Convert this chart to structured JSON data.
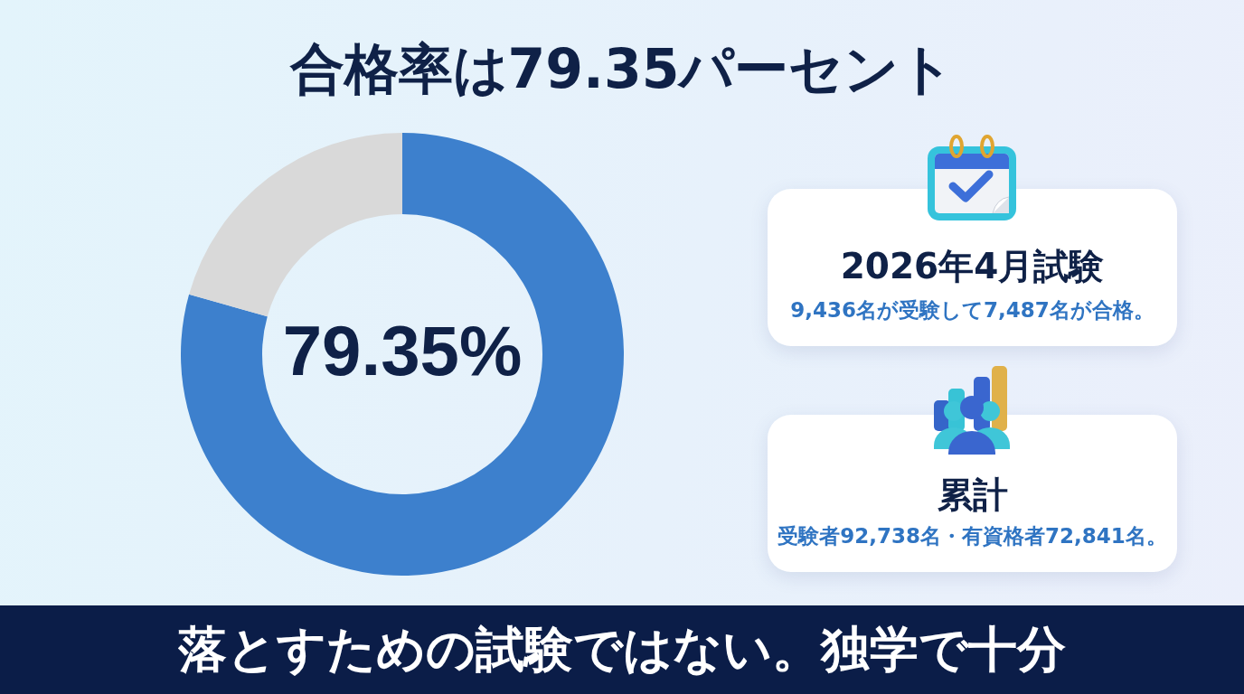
{
  "chart_data": {
    "type": "donut",
    "title": "合格率は79.35パーセント",
    "categories": [
      null,
      null
    ],
    "values": [
      79.35,
      20.65
    ],
    "colors": [
      "#3d80cd",
      "#d9d9d9"
    ],
    "value_labels": [
      "79.35%",
      null
    ],
    "annotations": [
      "2026年4月試験",
      "9,436名が受験して7,487名が合格。",
      "累計",
      "受験者92,738名・有資格者72,841名。",
      "落とすための試験ではない。独学で十分"
    ]
  }
}
